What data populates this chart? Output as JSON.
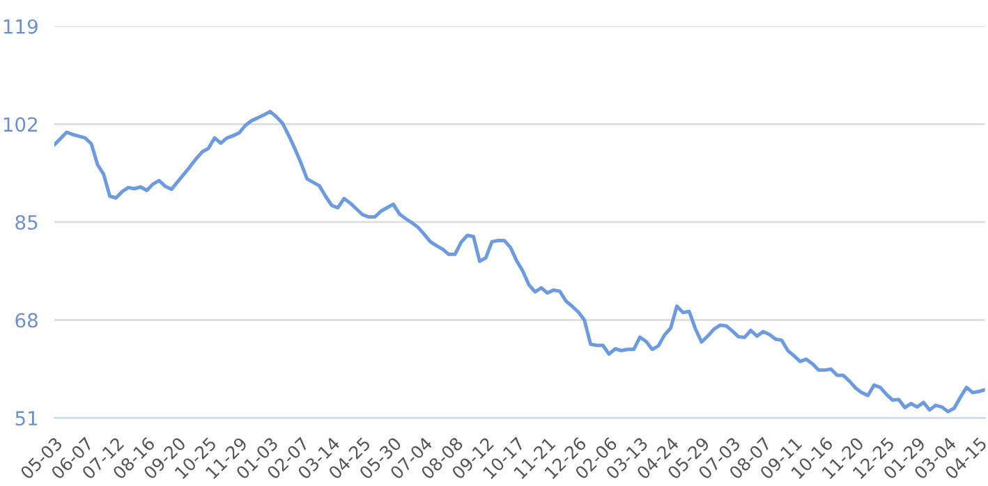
{
  "chart_data": {
    "type": "line",
    "categories": [
      "05-03",
      null,
      null,
      null,
      null,
      "06-07",
      null,
      null,
      null,
      null,
      "07-12",
      null,
      null,
      null,
      null,
      "08-16",
      null,
      null,
      null,
      null,
      "09-20",
      null,
      null,
      null,
      null,
      "10-25",
      null,
      null,
      null,
      null,
      "11-29",
      null,
      null,
      null,
      null,
      "01-03",
      null,
      null,
      null,
      null,
      "02-07",
      null,
      null,
      null,
      null,
      "03-14",
      null,
      null,
      null,
      null,
      "04-25",
      null,
      null,
      null,
      null,
      "05-30",
      null,
      null,
      null,
      null,
      "07-04",
      null,
      null,
      null,
      null,
      "08-08",
      null,
      null,
      null,
      null,
      "09-12",
      null,
      null,
      null,
      null,
      "10-17",
      null,
      null,
      null,
      null,
      "11-21",
      null,
      null,
      null,
      null,
      "12-26",
      null,
      null,
      null,
      null,
      "02-06",
      null,
      null,
      null,
      null,
      "03-13",
      null,
      null,
      null,
      null,
      "04-24",
      null,
      null,
      null,
      null,
      "05-29",
      null,
      null,
      null,
      null,
      "07-03",
      null,
      null,
      null,
      null,
      "08-07",
      null,
      null,
      null,
      null,
      "09-11",
      null,
      null,
      null,
      null,
      "10-16",
      null,
      null,
      null,
      null,
      "11-20",
      null,
      null,
      null,
      null,
      "12-25",
      null,
      null,
      null,
      null,
      "01-29",
      null,
      null,
      null,
      null,
      "03-04",
      null,
      null,
      null,
      null,
      "04-15",
      null
    ],
    "series": [
      {
        "color": "#6d9be0",
        "values": [
          98.4,
          99.5,
          100.6,
          100.2,
          99.9,
          99.6,
          98.6,
          95.0,
          93.3,
          89.5,
          89.2,
          90.3,
          91.0,
          90.8,
          91.1,
          90.5,
          91.6,
          92.2,
          91.2,
          90.7,
          92.0,
          93.3,
          94.6,
          96.0,
          97.2,
          97.8,
          99.6,
          98.7,
          99.6,
          100.0,
          100.5,
          101.8,
          102.6,
          103.1,
          103.6,
          104.2,
          103.3,
          102.2,
          100.1,
          97.8,
          95.3,
          92.5,
          91.9,
          91.3,
          89.5,
          87.9,
          87.5,
          89.1,
          88.3,
          87.3,
          86.3,
          85.9,
          85.9,
          86.9,
          87.5,
          88.1,
          86.4,
          85.6,
          84.9,
          84.1,
          82.9,
          81.6,
          80.9,
          80.3,
          79.4,
          79.4,
          81.5,
          82.7,
          82.5,
          78.2,
          78.8,
          81.6,
          81.8,
          81.8,
          80.6,
          78.3,
          76.5,
          74.1,
          72.9,
          73.6,
          72.7,
          73.2,
          73.0,
          71.3,
          70.4,
          69.4,
          68.0,
          63.8,
          63.6,
          63.6,
          62.1,
          63.0,
          62.7,
          62.9,
          62.9,
          65.0,
          64.3,
          62.9,
          63.5,
          65.4,
          66.6,
          70.4,
          69.3,
          69.5,
          66.5,
          64.2,
          65.2,
          66.4,
          67.1,
          67.0,
          66.1,
          65.1,
          65.0,
          66.2,
          65.2,
          66.0,
          65.5,
          64.7,
          64.5,
          62.7,
          61.8,
          60.8,
          61.2,
          60.4,
          59.3,
          59.3,
          59.5,
          58.4,
          58.4,
          57.4,
          56.2,
          55.4,
          54.9,
          56.7,
          56.3,
          55.1,
          54.1,
          54.2,
          52.8,
          53.5,
          52.9,
          53.7,
          52.4,
          53.2,
          52.9,
          52.1,
          52.7,
          54.6,
          56.3,
          55.4,
          55.6,
          55.9
        ]
      }
    ],
    "ylim": [
      51,
      119
    ],
    "yticks": [
      51,
      68,
      85,
      102,
      119
    ],
    "grid": "y",
    "marker": "none",
    "line_style": "solid",
    "legend": false
  }
}
